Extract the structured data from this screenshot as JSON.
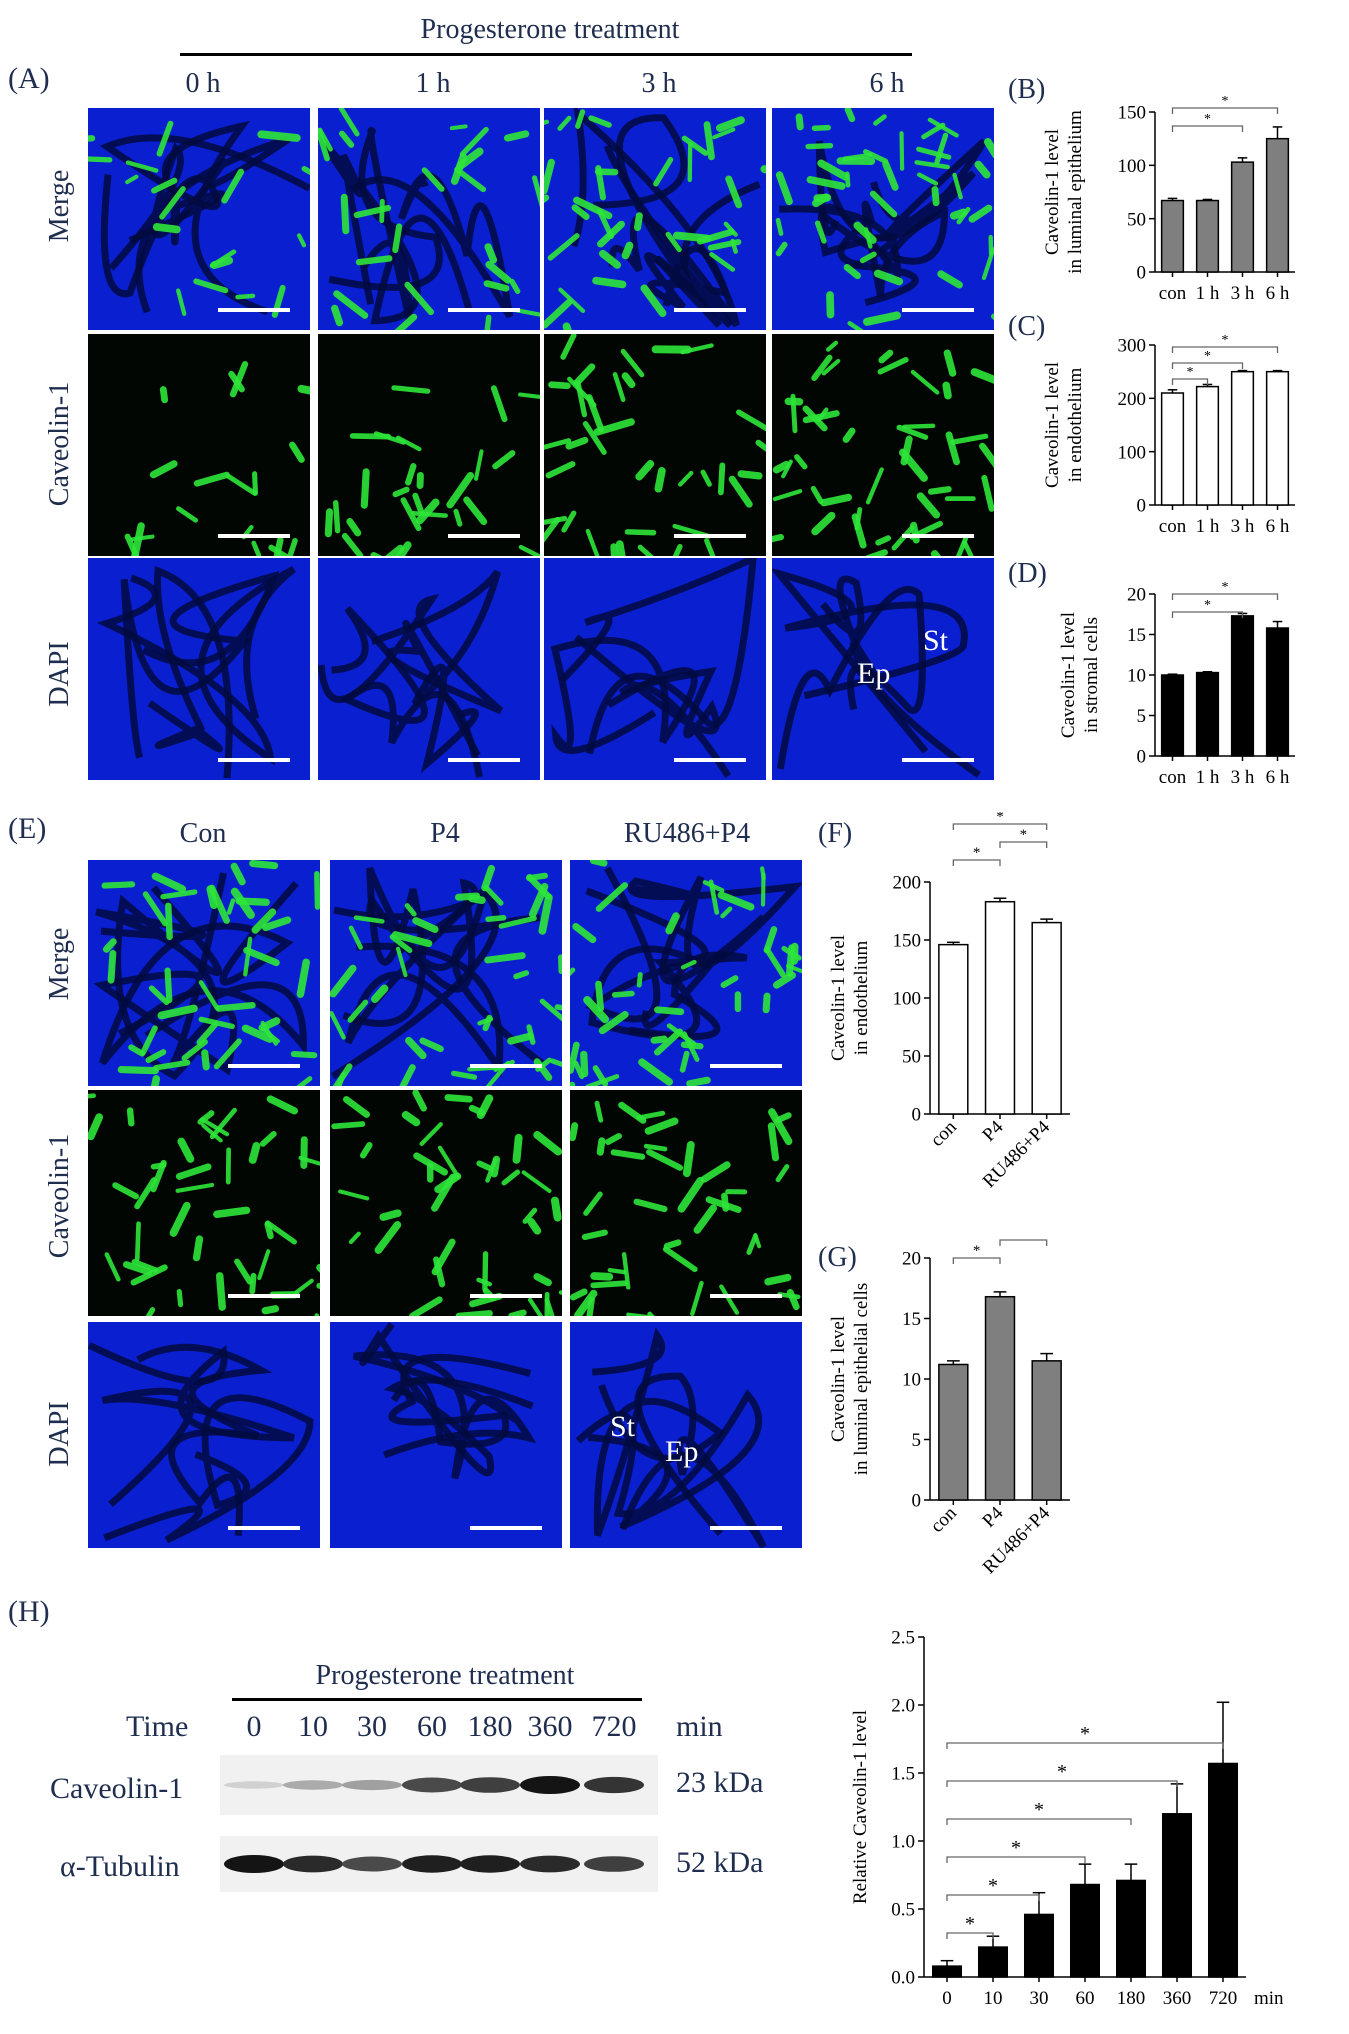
{
  "panel_a": {
    "label": "(A)",
    "treatment_title": "Progesterone treatment",
    "columns": [
      "0 h",
      "1 h",
      "3 h",
      "6 h"
    ],
    "rows": [
      "Merge",
      "Caveolin-1",
      "DAPI"
    ],
    "annotations": {
      "ep": "Ep",
      "st": "St"
    }
  },
  "panel_e": {
    "label": "(E)",
    "columns": [
      "Con",
      "P4",
      "RU486+P4"
    ],
    "rows": [
      "Merge",
      "Caveolin-1",
      "DAPI"
    ],
    "annotations": {
      "st": "St",
      "ep": "Ep"
    }
  },
  "panel_h": {
    "label": "(H)",
    "treatment_title": "Progesterone treatment",
    "time_label": "Time",
    "times": [
      "0",
      "10",
      "30",
      "60",
      "180",
      "360",
      "720"
    ],
    "time_unit": "min",
    "blots": [
      {
        "name": "Caveolin-1",
        "size": "23 kDa",
        "intensities": [
          0.12,
          0.3,
          0.35,
          0.75,
          0.8,
          1.0,
          0.85
        ]
      },
      {
        "name": "α-Tubulin",
        "size": "52 kDa",
        "intensities": [
          1.0,
          0.9,
          0.75,
          0.95,
          0.95,
          0.9,
          0.8
        ]
      }
    ]
  },
  "colors": {
    "text": "#1f2d4f",
    "grey_bar": "#7f7f7f",
    "black_bar": "#000000",
    "white_bar": "#ffffff",
    "dapi": "#0a1fd0",
    "caveolin": "#2ee63a"
  },
  "chart_data": [
    {
      "id": "B",
      "label": "(B)",
      "type": "bar",
      "ylabel": "Caveolin-1 level in luminal epithelium",
      "categories": [
        "con",
        "1 h",
        "3 h",
        "6 h"
      ],
      "values": [
        67,
        67,
        103,
        125
      ],
      "errors": [
        2,
        1,
        4,
        11
      ],
      "ylim": [
        0,
        150
      ],
      "yticks": [
        "0",
        "50",
        "100",
        "150"
      ],
      "fill": "#7f7f7f",
      "sig_marker": "*",
      "significance": [
        [
          0,
          2
        ],
        [
          0,
          3
        ]
      ]
    },
    {
      "id": "C",
      "label": "(C)",
      "type": "bar",
      "ylabel": "Caveolin-1 level in endothelium",
      "categories": [
        "con",
        "1 h",
        "3 h",
        "6 h"
      ],
      "values": [
        210,
        222,
        250,
        250
      ],
      "errors": [
        6,
        4,
        2,
        2
      ],
      "ylim": [
        0,
        300
      ],
      "yticks": [
        "0",
        "100",
        "200",
        "300"
      ],
      "fill": "#ffffff",
      "sig_marker": "*",
      "significance": [
        [
          0,
          1
        ],
        [
          0,
          2
        ],
        [
          0,
          3
        ]
      ]
    },
    {
      "id": "D",
      "label": "(D)",
      "type": "bar",
      "ylabel": "Caveolin-1 level in stromal cells",
      "categories": [
        "con",
        "1 h",
        "3 h",
        "6 h"
      ],
      "values": [
        10,
        10.3,
        17.3,
        15.8
      ],
      "errors": [
        0.1,
        0.1,
        0.3,
        0.8
      ],
      "ylim": [
        0,
        20
      ],
      "yticks": [
        "0",
        "5",
        "10",
        "15",
        "20"
      ],
      "fill": "#000000",
      "sig_marker": "*",
      "significance": [
        [
          0,
          2
        ],
        [
          0,
          3
        ]
      ]
    },
    {
      "id": "F",
      "label": "(F)",
      "type": "bar",
      "ylabel": "Caveolin-1 level in endothelium",
      "categories": [
        "con",
        "P4",
        "RU486+P4"
      ],
      "values": [
        146,
        183,
        165
      ],
      "errors": [
        2,
        3,
        3
      ],
      "ylim": [
        0,
        200
      ],
      "yticks": [
        "0",
        "50",
        "100",
        "150",
        "200"
      ],
      "fill": "#ffffff",
      "sig_marker": "*",
      "significance": [
        [
          0,
          1
        ],
        [
          1,
          2
        ],
        [
          0,
          2
        ]
      ]
    },
    {
      "id": "G",
      "label": "(G)",
      "type": "bar",
      "ylabel": "Caveolin-1 level in luminal epithelial cells",
      "categories": [
        "con",
        "P4",
        "RU486+P4"
      ],
      "values": [
        11.2,
        16.8,
        11.5
      ],
      "errors": [
        0.3,
        0.4,
        0.6
      ],
      "ylim": [
        0,
        20
      ],
      "yticks": [
        "0",
        "5",
        "10",
        "15",
        "20"
      ],
      "fill": "#7f7f7f",
      "sig_marker": "*",
      "significance": [
        [
          0,
          1
        ],
        [
          1,
          2
        ]
      ]
    },
    {
      "id": "H",
      "type": "bar",
      "ylabel": "Relative Caveolin-1 level",
      "categories": [
        "0",
        "10",
        "30",
        "60",
        "180",
        "360",
        "720"
      ],
      "xunit": "min",
      "values": [
        0.08,
        0.22,
        0.46,
        0.68,
        0.71,
        1.2,
        1.57
      ],
      "errors": [
        0.04,
        0.08,
        0.16,
        0.15,
        0.12,
        0.22,
        0.45
      ],
      "ylim": [
        0,
        2.5
      ],
      "yticks": [
        "0.0",
        "0.5",
        "1.0",
        "1.5",
        "2.0",
        "2.5"
      ],
      "fill": "#000000",
      "sig_marker": "*",
      "significance": [
        [
          0,
          1
        ],
        [
          0,
          2
        ],
        [
          0,
          3
        ],
        [
          0,
          4
        ],
        [
          0,
          5
        ],
        [
          0,
          6
        ]
      ]
    }
  ]
}
